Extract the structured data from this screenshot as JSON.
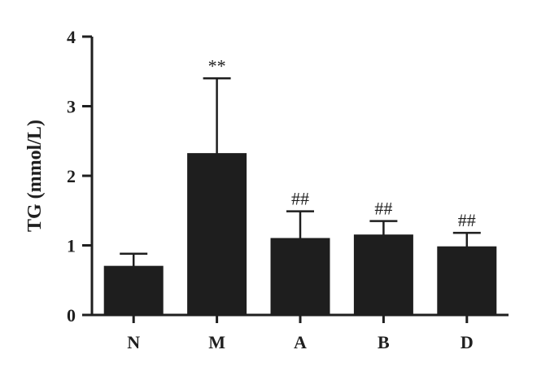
{
  "chart_data": {
    "type": "bar",
    "categories": [
      "N",
      "M",
      "A",
      "B",
      "D"
    ],
    "values": [
      0.7,
      2.32,
      1.1,
      1.15,
      0.98
    ],
    "error_upper": [
      0.88,
      3.4,
      1.49,
      1.35,
      1.18
    ],
    "annotations": [
      "",
      "**",
      "##",
      "##",
      "##"
    ],
    "ylabel": "TG (mmol/L)",
    "xlabel": "",
    "ylim": [
      0,
      4
    ],
    "yticks": [
      0,
      1,
      2,
      3,
      4
    ],
    "grid": false,
    "colors": {
      "bar": "#1e1e1e",
      "axis": "#1f1f1f",
      "background": "#ffffff"
    }
  }
}
